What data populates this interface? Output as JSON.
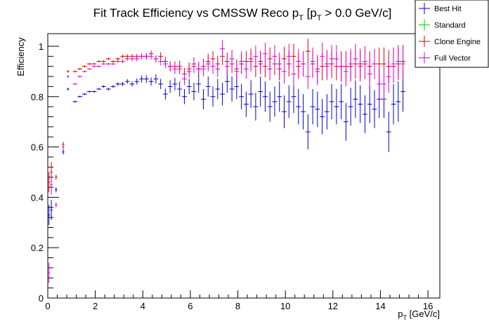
{
  "chart_data": {
    "type": "scatter",
    "title_main": "Fit Track Efficiency vs CMSSW Reco p",
    "title_sub1": "T",
    "title_mid": " [p",
    "title_sub2": "T",
    "title_end": " > 0.0 GeV/c]",
    "xlabel_main": "p",
    "xlabel_sub": "T",
    "xlabel_end": " [GeV/c]",
    "ylabel": "Efficiency",
    "xlim": [
      0,
      16.5
    ],
    "ylim": [
      0,
      1.05
    ],
    "xticks": [
      "0",
      "2",
      "4",
      "6",
      "8",
      "10",
      "12",
      "14",
      "16"
    ],
    "yticks": [
      "0",
      "0.2",
      "0.4",
      "0.6",
      "0.8",
      "1"
    ],
    "legend_position": "top-right",
    "legend": [
      {
        "name": "Best Hit",
        "color": "#0000cc"
      },
      {
        "name": "Standard",
        "color": "#00cc00"
      },
      {
        "name": "Clone Engine",
        "color": "#dd0000"
      },
      {
        "name": "Full Vector",
        "color": "#dd00dd"
      }
    ],
    "series": [
      {
        "name": "Best Hit",
        "color": "#0000cc",
        "x": [
          0.05,
          0.15,
          0.35,
          0.65,
          0.85,
          1.15,
          1.35,
          1.55,
          1.75,
          1.95,
          2.15,
          2.35,
          2.55,
          2.75,
          2.95,
          3.15,
          3.35,
          3.55,
          3.75,
          3.95,
          4.15,
          4.35,
          4.55,
          4.75,
          4.95,
          5.15,
          5.35,
          5.55,
          5.75,
          5.95,
          6.15,
          6.35,
          6.55,
          6.75,
          6.95,
          7.15,
          7.35,
          7.55,
          7.75,
          7.95,
          8.15,
          8.35,
          8.55,
          8.75,
          8.95,
          9.15,
          9.35,
          9.55,
          9.75,
          9.95,
          10.15,
          10.35,
          10.55,
          10.75,
          10.95,
          11.15,
          11.35,
          11.55,
          11.75,
          11.95,
          12.15,
          12.35,
          12.55,
          12.75,
          12.95,
          13.15,
          13.35,
          13.55,
          13.75,
          13.95,
          14.15,
          14.35,
          14.55,
          14.75,
          14.95
        ],
        "y": [
          0.33,
          0.35,
          0.43,
          0.58,
          0.83,
          0.78,
          0.8,
          0.81,
          0.82,
          0.82,
          0.83,
          0.84,
          0.83,
          0.84,
          0.85,
          0.85,
          0.86,
          0.85,
          0.86,
          0.87,
          0.87,
          0.86,
          0.87,
          0.85,
          0.81,
          0.84,
          0.85,
          0.83,
          0.8,
          0.84,
          0.82,
          0.85,
          0.79,
          0.84,
          0.8,
          0.83,
          0.81,
          0.86,
          0.83,
          0.84,
          0.8,
          0.77,
          0.81,
          0.76,
          0.82,
          0.8,
          0.76,
          0.78,
          0.8,
          0.74,
          0.78,
          0.8,
          0.76,
          0.74,
          0.66,
          0.76,
          0.75,
          0.72,
          0.74,
          0.78,
          0.76,
          0.78,
          0.7,
          0.76,
          0.79,
          0.77,
          0.73,
          0.77,
          0.75,
          0.79,
          0.79,
          0.66,
          0.77,
          0.78,
          0.82
        ],
        "err": [
          0.04,
          0.04,
          0.01,
          0.01,
          0.005,
          0.004,
          0.004,
          0.004,
          0.004,
          0.004,
          0.004,
          0.005,
          0.005,
          0.006,
          0.007,
          0.008,
          0.009,
          0.01,
          0.012,
          0.014,
          0.015,
          0.016,
          0.018,
          0.02,
          0.022,
          0.025,
          0.025,
          0.03,
          0.03,
          0.03,
          0.035,
          0.035,
          0.04,
          0.04,
          0.04,
          0.04,
          0.045,
          0.045,
          0.05,
          0.05,
          0.05,
          0.05,
          0.055,
          0.055,
          0.06,
          0.06,
          0.06,
          0.06,
          0.06,
          0.065,
          0.065,
          0.065,
          0.07,
          0.07,
          0.07,
          0.07,
          0.07,
          0.07,
          0.07,
          0.07,
          0.07,
          0.07,
          0.075,
          0.075,
          0.075,
          0.075,
          0.075,
          0.075,
          0.075,
          0.075,
          0.075,
          0.08,
          0.08,
          0.08,
          0.08
        ]
      },
      {
        "name": "Standard",
        "color": "#00cc00",
        "x": [],
        "y": [],
        "err": []
      },
      {
        "name": "Clone Engine",
        "color": "#dd0000",
        "x": [
          0.05,
          0.15,
          0.35,
          0.65,
          0.85,
          1.15,
          1.35,
          1.55,
          1.75,
          1.95,
          2.15,
          2.35,
          2.55,
          2.75,
          2.95,
          3.15,
          3.35,
          3.55,
          3.75,
          3.95,
          4.15,
          4.35,
          4.55,
          4.75,
          4.95,
          5.15,
          5.35,
          5.55,
          5.75,
          5.95,
          6.15,
          6.35,
          6.55,
          6.75,
          6.95,
          7.15,
          7.35,
          7.55,
          7.75,
          7.95,
          8.15,
          8.35,
          8.55,
          8.75,
          8.95,
          9.15,
          9.35,
          9.55,
          9.75,
          9.95,
          10.15,
          10.35,
          10.55,
          10.75,
          10.95,
          11.15,
          11.35,
          11.55,
          11.75,
          11.95,
          12.15,
          12.35,
          12.55,
          12.75,
          12.95,
          13.15,
          13.35,
          13.55,
          13.75,
          13.95,
          14.15,
          14.35,
          14.55,
          14.75,
          14.95
        ],
        "y": [
          0.46,
          0.5,
          0.48,
          0.61,
          0.9,
          0.9,
          0.91,
          0.92,
          0.93,
          0.93,
          0.94,
          0.94,
          0.95,
          0.94,
          0.95,
          0.96,
          0.96,
          0.96,
          0.96,
          0.96,
          0.96,
          0.97,
          0.95,
          0.96,
          0.94,
          0.92,
          0.92,
          0.92,
          0.89,
          0.91,
          0.93,
          0.91,
          0.92,
          0.94,
          0.95,
          0.93,
          0.96,
          0.94,
          0.93,
          0.91,
          0.93,
          0.94,
          0.95,
          0.92,
          0.94,
          0.92,
          0.95,
          0.93,
          0.91,
          0.95,
          0.93,
          0.96,
          0.92,
          0.93,
          0.98,
          0.93,
          0.91,
          0.92,
          0.93,
          0.93,
          0.92,
          0.92,
          0.92,
          0.92,
          0.93,
          0.93,
          0.93,
          0.92,
          0.93,
          0.93,
          0.93,
          0.92,
          0.92,
          0.93,
          0.94
        ],
        "err": [
          0.04,
          0.04,
          0.01,
          0.01,
          0.005,
          0.004,
          0.004,
          0.004,
          0.004,
          0.004,
          0.004,
          0.004,
          0.005,
          0.005,
          0.006,
          0.007,
          0.008,
          0.009,
          0.01,
          0.011,
          0.012,
          0.013,
          0.014,
          0.016,
          0.018,
          0.02,
          0.02,
          0.022,
          0.024,
          0.025,
          0.026,
          0.028,
          0.03,
          0.03,
          0.03,
          0.032,
          0.034,
          0.035,
          0.036,
          0.038,
          0.04,
          0.04,
          0.04,
          0.042,
          0.042,
          0.044,
          0.045,
          0.045,
          0.046,
          0.048,
          0.05,
          0.05,
          0.05,
          0.05,
          0.05,
          0.055,
          0.055,
          0.055,
          0.055,
          0.055,
          0.055,
          0.06,
          0.06,
          0.06,
          0.06,
          0.06,
          0.06,
          0.06,
          0.06,
          0.065,
          0.065,
          0.065,
          0.065,
          0.065,
          0.065
        ]
      },
      {
        "name": "Full Vector",
        "color": "#dd00dd",
        "x": [
          0.05,
          0.15,
          0.35,
          0.65,
          0.85,
          1.15,
          1.35,
          1.55,
          1.75,
          1.95,
          2.15,
          2.35,
          2.55,
          2.75,
          2.95,
          3.15,
          3.35,
          3.55,
          3.75,
          3.95,
          4.15,
          4.35,
          4.55,
          4.75,
          4.95,
          5.15,
          5.35,
          5.55,
          5.75,
          5.95,
          6.15,
          6.35,
          6.55,
          6.75,
          6.95,
          7.15,
          7.35,
          7.55,
          7.75,
          7.95,
          8.15,
          8.35,
          8.55,
          8.75,
          8.95,
          9.15,
          9.35,
          9.55,
          9.75,
          9.95,
          10.15,
          10.35,
          10.55,
          10.75,
          10.95,
          11.15,
          11.35,
          11.55,
          11.75,
          11.95,
          12.15,
          12.35,
          12.55,
          12.75,
          12.95,
          13.15,
          13.35,
          13.55,
          13.75,
          13.95,
          14.15,
          14.35,
          14.55,
          14.75,
          14.95
        ],
        "y": [
          0.1,
          0.45,
          0.37,
          0.6,
          0.88,
          0.85,
          0.88,
          0.9,
          0.91,
          0.92,
          0.92,
          0.93,
          0.93,
          0.93,
          0.94,
          0.94,
          0.95,
          0.95,
          0.95,
          0.96,
          0.96,
          0.96,
          0.95,
          0.94,
          0.93,
          0.92,
          0.91,
          0.91,
          0.87,
          0.9,
          0.92,
          0.91,
          0.91,
          0.93,
          0.92,
          0.91,
          0.99,
          0.92,
          0.95,
          0.9,
          0.94,
          0.91,
          0.94,
          0.96,
          0.93,
          0.97,
          0.91,
          0.96,
          0.93,
          0.9,
          0.96,
          0.89,
          0.94,
          0.93,
          0.88,
          0.94,
          0.9,
          0.96,
          0.92,
          0.95,
          0.95,
          0.92,
          0.9,
          0.93,
          0.95,
          0.92,
          0.94,
          0.89,
          0.93,
          0.85,
          0.85,
          0.88,
          0.93,
          0.94,
          0.93
        ],
        "err": [
          0.04,
          0.04,
          0.01,
          0.01,
          0.005,
          0.004,
          0.004,
          0.004,
          0.004,
          0.004,
          0.004,
          0.004,
          0.005,
          0.005,
          0.006,
          0.007,
          0.008,
          0.009,
          0.01,
          0.011,
          0.012,
          0.013,
          0.014,
          0.016,
          0.018,
          0.02,
          0.02,
          0.022,
          0.024,
          0.025,
          0.026,
          0.028,
          0.03,
          0.03,
          0.03,
          0.032,
          0.034,
          0.035,
          0.036,
          0.038,
          0.04,
          0.04,
          0.04,
          0.042,
          0.042,
          0.044,
          0.045,
          0.045,
          0.046,
          0.048,
          0.05,
          0.05,
          0.05,
          0.05,
          0.05,
          0.055,
          0.055,
          0.055,
          0.055,
          0.055,
          0.055,
          0.06,
          0.06,
          0.06,
          0.06,
          0.06,
          0.06,
          0.06,
          0.06,
          0.065,
          0.065,
          0.065,
          0.065,
          0.065,
          0.065
        ]
      }
    ]
  }
}
